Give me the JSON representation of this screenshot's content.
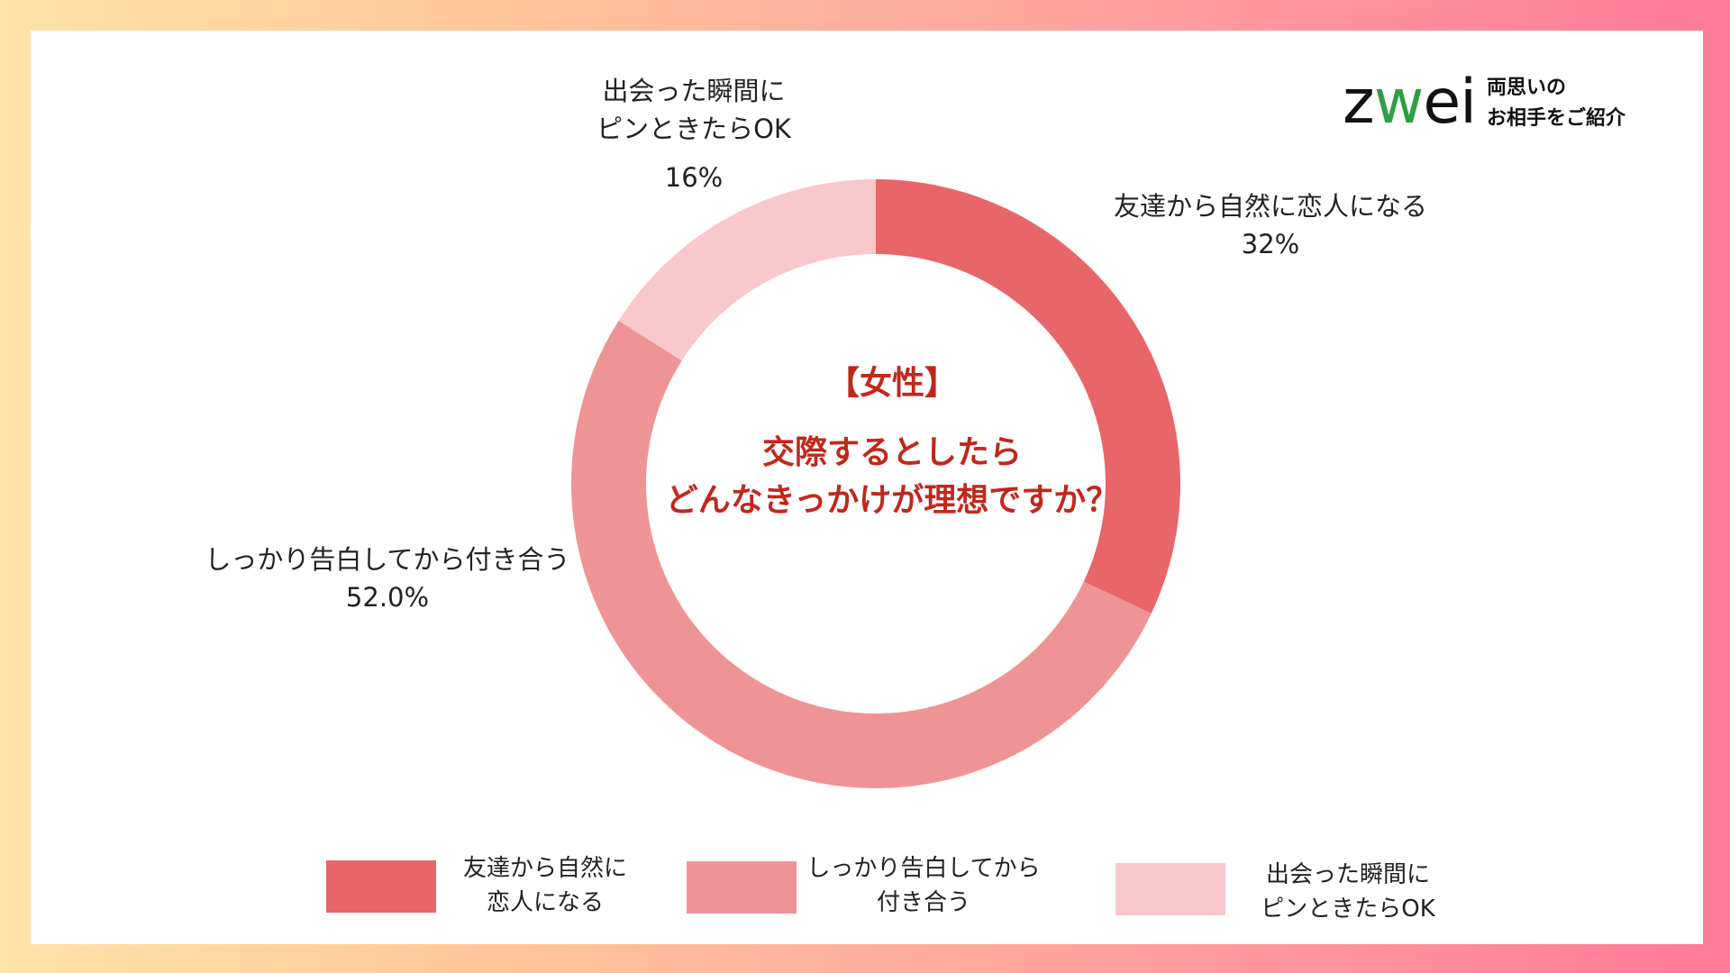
{
  "colors": {
    "slice1": "#e8656a",
    "slice2": "#ef9496",
    "slice3": "#f8c8cc",
    "title": "#c0281c"
  },
  "logo": {
    "word_prefix": "z",
    "word_heart": "w",
    "word_suffix": "ei",
    "tagline_line1": "両思いの",
    "tagline_line2": "お相手をご紹介"
  },
  "center": {
    "tag": "【女性】",
    "question_line1": "交際するとしたら",
    "question_line2": "どんなきっかけが理想ですか？"
  },
  "slice_labels": {
    "s1_name": "友達から自然に恋人になる",
    "s1_value": "32%",
    "s2_name": "しっかり告白してから付き合う",
    "s2_value": "52.0%",
    "s3_name_line1": "出会った瞬間に",
    "s3_name_line2": "ピンときたらOK",
    "s3_value": "16%"
  },
  "legend": [
    {
      "line1": "友達から自然に",
      "line2": "恋人になる"
    },
    {
      "line1": "しっかり告白してから",
      "line2": "付き合う"
    },
    {
      "line1": "出会った瞬間に",
      "line2": "ピンときたらOK"
    }
  ],
  "chart_data": {
    "type": "pie",
    "donut": true,
    "categories": [
      "友達から自然に恋人になる",
      "しっかり告白してから付き合う",
      "出会った瞬間にピンときたらOK"
    ],
    "values": [
      32,
      52,
      16
    ],
    "start_angle": "top, clockwise",
    "legend_position": "bottom"
  }
}
